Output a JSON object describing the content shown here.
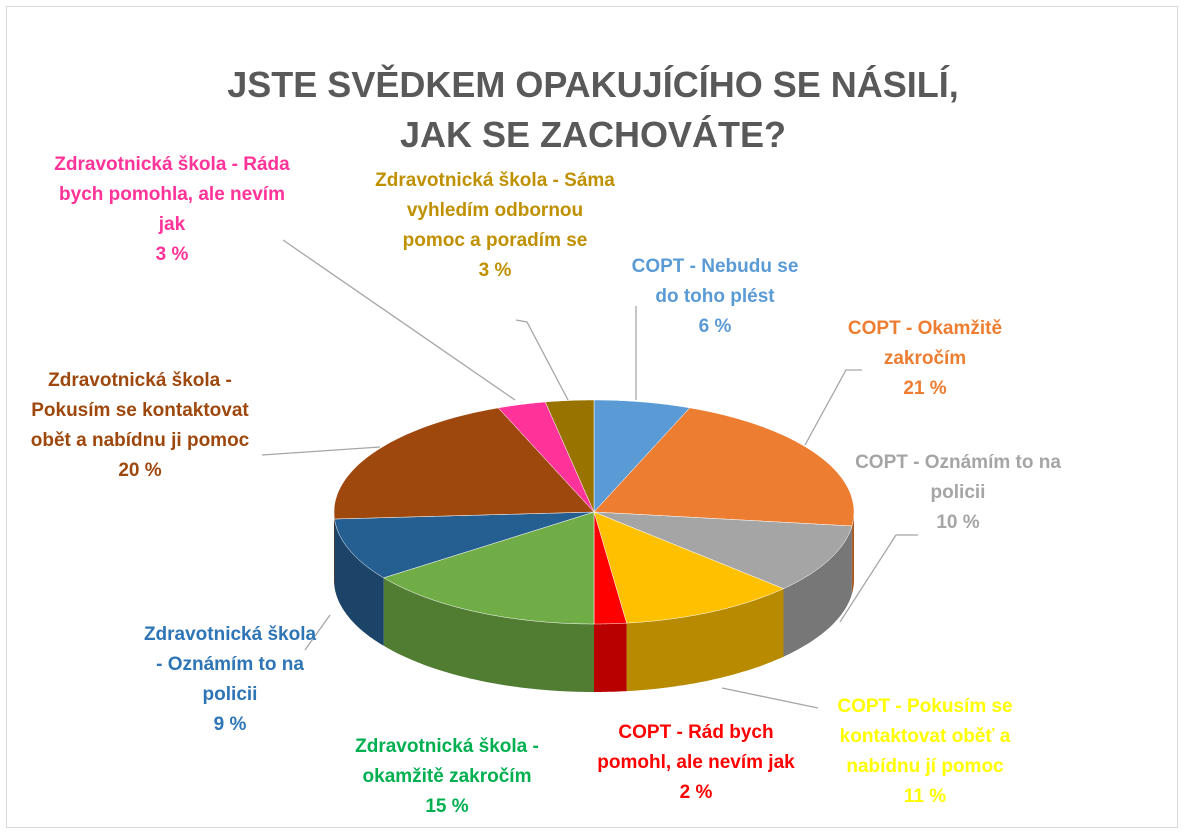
{
  "chart_data": {
    "type": "pie3d",
    "title": "JSTE SVĚDKEM OPAKUJÍCÍHO SE NÁSILÍ, JAK SE ZACHOVÁTE?",
    "categories": [
      "COPT - Nebudu se do toho plést",
      "COPT - Okamžitě zakročím",
      "COPT - Oznámím to na policii",
      "COPT - Pokusím se kontaktovat oběť a nabídnu jí pomoc",
      "COPT - Rád bych pomohl, ale nevím jak",
      "Zdravotnická škola - okamžitě zakročím",
      "Zdravotnická škola - Oznámím to na policii",
      "Zdravotnická škola - Pokusím se kontaktovat obět a nabídnu ji pomoc",
      "Zdravotnická škola - Ráda bych pomohla, ale nevím jak",
      "Zdravotnická škola - Sáma vyhledím odbornou pomoc  a poradím se"
    ],
    "values": [
      6,
      21,
      10,
      11,
      2,
      15,
      9,
      20,
      3,
      3
    ],
    "value_labels": [
      "6 %",
      "21 %",
      "10 %",
      "11 %",
      "2 %",
      "15 %",
      "9 %",
      "20 %",
      "3 %",
      "3 %"
    ],
    "colors": [
      "#5b9bd5",
      "#ed7d31",
      "#a5a5a5",
      "#ffc000",
      "#ff0000",
      "#70ad47",
      "#255e91",
      "#9e480e",
      "#ff3399",
      "#997300"
    ],
    "label_colors": [
      "#5b9bd5",
      "#ed7d31",
      "#a5a5a5",
      "#ffff00",
      "#ff0000",
      "#00b050",
      "#2e75b6",
      "#9e480e",
      "#ff3399",
      "#bf9000"
    ]
  }
}
